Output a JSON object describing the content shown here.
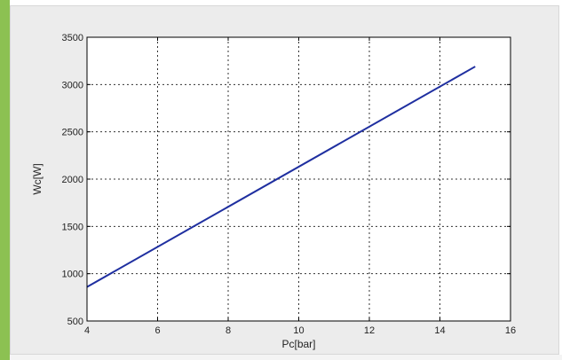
{
  "chart_data": {
    "type": "line",
    "xlabel": "Pc[bar]",
    "ylabel": "Wc[W]",
    "xlim": [
      4,
      16
    ],
    "ylim": [
      500,
      3500
    ],
    "xticks": [
      4,
      6,
      8,
      10,
      12,
      14,
      16
    ],
    "yticks": [
      500,
      1000,
      1500,
      2000,
      2500,
      3000,
      3500
    ],
    "grid": true,
    "series": [
      {
        "x": [
          4,
          15
        ],
        "y": [
          860,
          3190
        ],
        "color": "#1f2fa0"
      }
    ]
  },
  "colors": {
    "accent_bar": "#8cc152",
    "figure_background": "#ececec",
    "plot_background": "#ffffff",
    "line": "#1f2fa0"
  }
}
